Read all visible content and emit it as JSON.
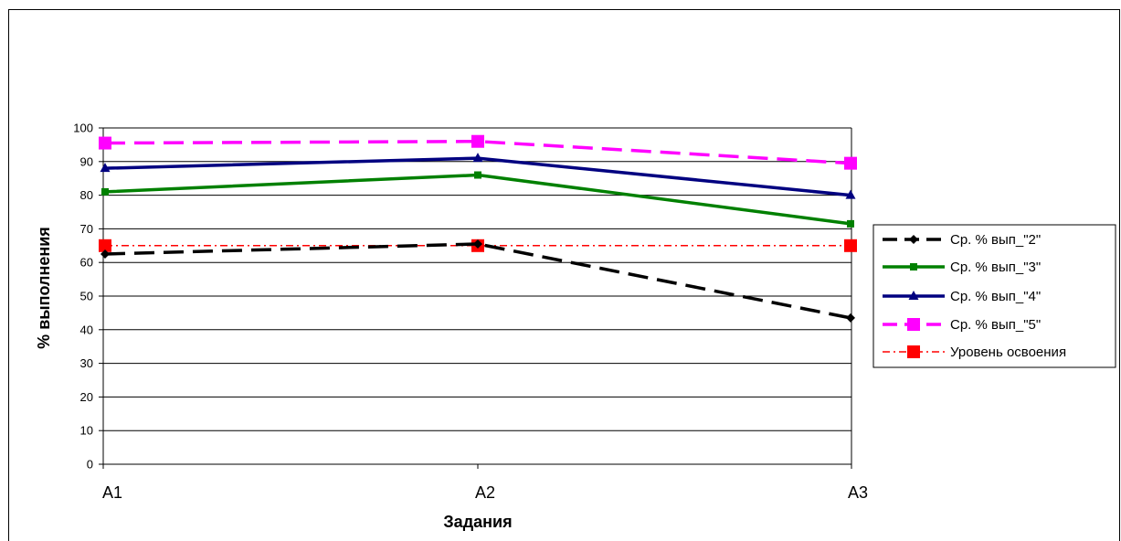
{
  "chart_data": {
    "type": "line",
    "title": "",
    "xlabel": "Задания",
    "ylabel": "% выполнения",
    "categories": [
      "А1",
      "А2",
      "А3"
    ],
    "ylim": [
      0,
      100
    ],
    "yticks": [
      0,
      10,
      20,
      30,
      40,
      50,
      60,
      70,
      80,
      90,
      100
    ],
    "grid": true,
    "legend_position": "right",
    "series": [
      {
        "name": "Ср. % вып_\"2\"",
        "values": [
          62.5,
          65.5,
          43.5
        ],
        "color": "#000000",
        "dash": "dashed",
        "marker": "diamond"
      },
      {
        "name": "Ср. % вып_\"3\"",
        "values": [
          81,
          86,
          71.5
        ],
        "color": "#008000",
        "dash": "solid",
        "marker": "square"
      },
      {
        "name": "Ср. % вып_\"4\"",
        "values": [
          88,
          91,
          80
        ],
        "color": "#000080",
        "dash": "solid",
        "marker": "triangle"
      },
      {
        "name": "Ср. % вып_\"5\"",
        "values": [
          95.5,
          96,
          89.5
        ],
        "color": "#ff00ff",
        "dash": "dashed",
        "marker": "square-big"
      },
      {
        "name": "Уровень освоения",
        "values": [
          65,
          65,
          65
        ],
        "color": "#ff0000",
        "dash": "dashdot",
        "marker": "square-red"
      }
    ]
  }
}
